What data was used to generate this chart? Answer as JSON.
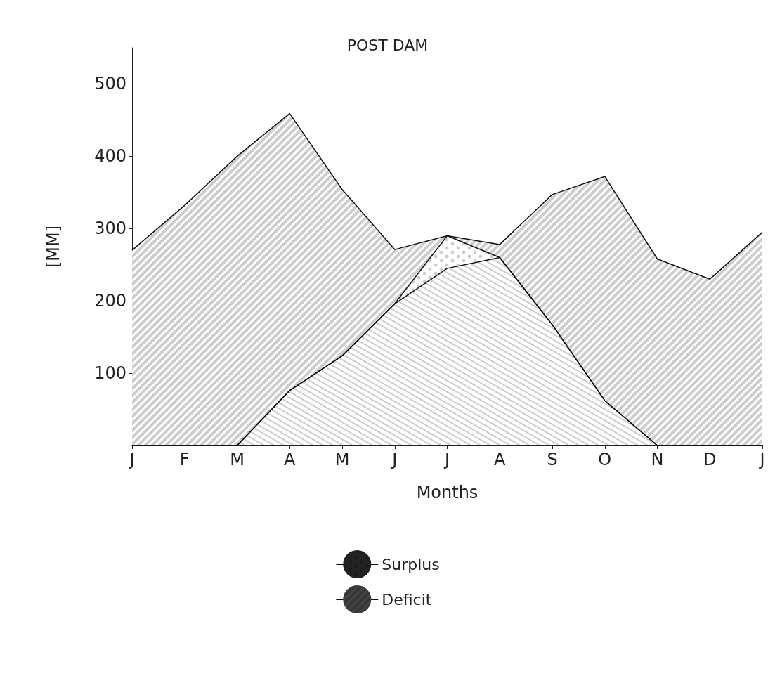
{
  "chart_data": {
    "type": "area",
    "title": "POST DAM",
    "xlabel": "Months",
    "ylabel": "[MM]",
    "categories": [
      "J",
      "F",
      "M",
      "A",
      "M",
      "J",
      "J",
      "A",
      "S",
      "O",
      "N",
      "D",
      "J"
    ],
    "stacked": true,
    "series": [
      {
        "color": "#ffffff",
        "values": [
          0,
          0,
          0,
          76,
          124,
          196,
          245,
          260,
          167,
          62,
          0,
          0,
          0
        ]
      },
      {
        "name": "Surplus",
        "color": "#222222",
        "values": [
          0,
          0,
          0,
          0,
          0,
          0,
          45,
          0,
          0,
          0,
          0,
          0,
          0
        ]
      },
      {
        "name": "Deficit",
        "color": "#444444",
        "values": [
          270,
          332,
          400,
          383,
          230,
          75,
          0,
          18,
          180,
          310,
          258,
          230,
          295
        ]
      }
    ],
    "ylim": [
      0,
      550
    ],
    "yticks": [
      100,
      200,
      300,
      400,
      500
    ],
    "grid": false,
    "legend": "bottom"
  }
}
